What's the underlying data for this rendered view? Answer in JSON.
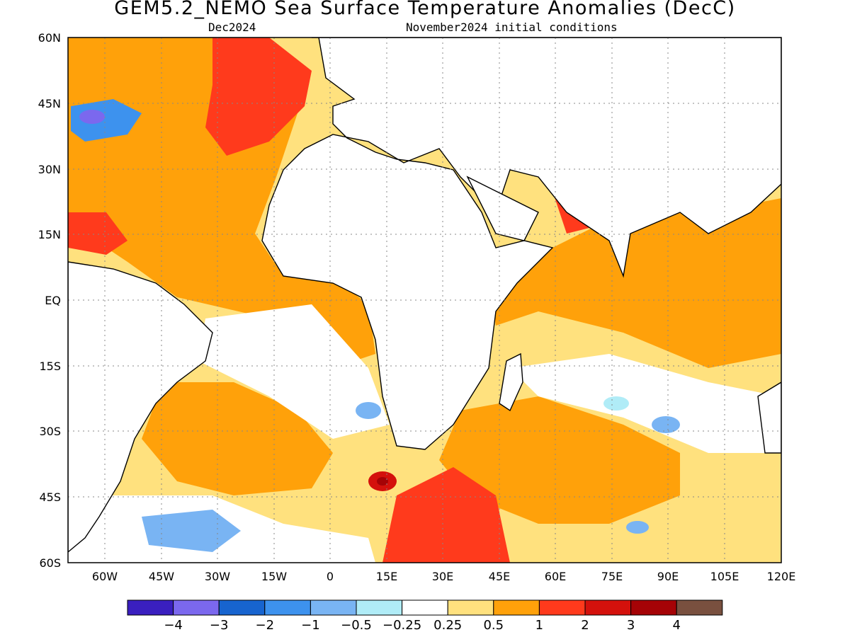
{
  "title": "GEM5.2_NEMO Sea Surface Temperature Anomalies (DecC)",
  "subtitle_left": "Dec2024",
  "subtitle_right": "November2024 initial conditions",
  "lon_ticks": [
    "60W",
    "45W",
    "30W",
    "15W",
    "0",
    "15E",
    "30E",
    "45E",
    "60E",
    "75E",
    "90E",
    "105E",
    "120E"
  ],
  "lat_ticks": [
    "60N",
    "45N",
    "30N",
    "15N",
    "EQ",
    "15S",
    "30S",
    "45S",
    "60S"
  ],
  "colorbar": {
    "colors": [
      "#3a1fbf",
      "#7b68ee",
      "#1764cf",
      "#3d92ee",
      "#79b4f3",
      "#b0ecf7",
      "#ffffff",
      "#ffe17e",
      "#ffa10a",
      "#ff3a1c",
      "#d4110c",
      "#a50306",
      "#79503f"
    ],
    "labels": [
      "-4",
      "-3",
      "-2",
      "-1",
      "-0.5",
      "-0.25",
      "0.25",
      "0.5",
      "1",
      "2",
      "3",
      "4"
    ]
  },
  "regions": [
    {
      "color": "#ffa10a",
      "desc": "North Atlantic warm"
    },
    {
      "color": "#ff3a1c",
      "desc": "NE Atlantic strong warm"
    },
    {
      "color": "#3d92ee",
      "desc": "NW Atlantic cold"
    },
    {
      "color": "#ffa10a",
      "desc": "Indian Ocean warm"
    },
    {
      "color": "#ff3a1c",
      "desc": "Southern Ocean strong warm"
    },
    {
      "color": "#79b4f3",
      "desc": "South Atlantic cold patches"
    }
  ]
}
